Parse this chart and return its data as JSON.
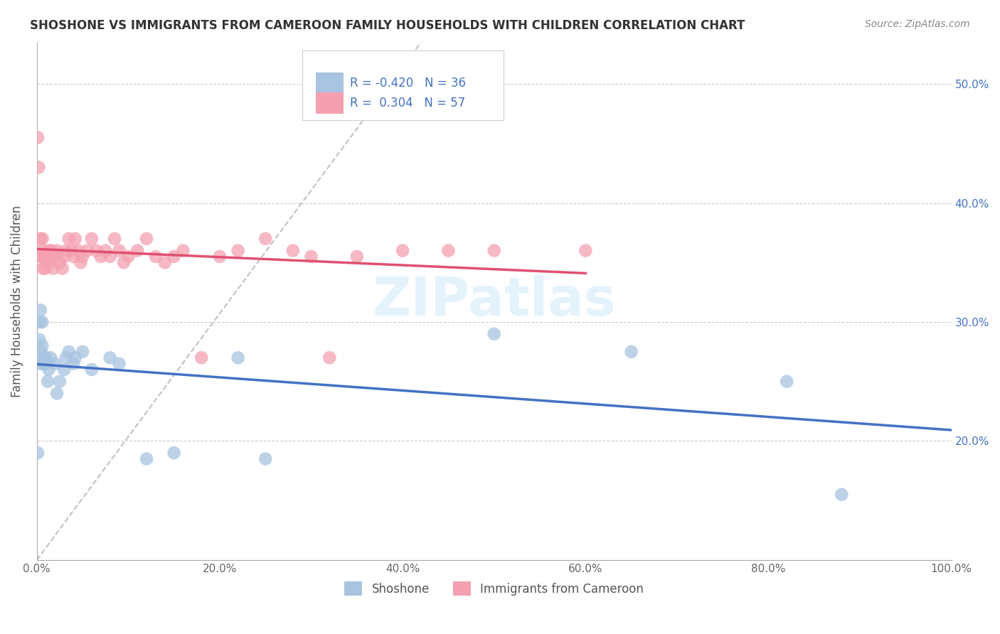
{
  "title": "SHOSHONE VS IMMIGRANTS FROM CAMEROON FAMILY HOUSEHOLDS WITH CHILDREN CORRELATION CHART",
  "source": "Source: ZipAtlas.com",
  "ylabel": "Family Households with Children",
  "legend_labels": [
    "Shoshone",
    "Immigrants from Cameroon"
  ],
  "r_shoshone": -0.42,
  "n_shoshone": 36,
  "r_cameroon": 0.304,
  "n_cameroon": 57,
  "color_shoshone": "#a8c4e0",
  "color_cameroon": "#f4a0b0",
  "trend_color_shoshone": "#4472c4",
  "trend_color_cameroon": "#e05070",
  "shoshone_x": [
    0.001,
    0.002,
    0.003,
    0.003,
    0.004,
    0.005,
    0.005,
    0.006,
    0.006,
    0.007,
    0.008,
    0.009,
    0.01,
    0.012,
    0.013,
    0.015,
    0.02,
    0.022,
    0.025,
    0.03,
    0.032,
    0.035,
    0.04,
    0.042,
    0.05,
    0.06,
    0.08,
    0.09,
    0.12,
    0.15,
    0.22,
    0.25,
    0.5,
    0.65,
    0.82,
    0.88
  ],
  "shoshone_y": [
    0.19,
    0.27,
    0.285,
    0.3,
    0.31,
    0.265,
    0.275,
    0.28,
    0.3,
    0.265,
    0.27,
    0.265,
    0.27,
    0.25,
    0.26,
    0.27,
    0.265,
    0.24,
    0.25,
    0.26,
    0.27,
    0.275,
    0.265,
    0.27,
    0.275,
    0.26,
    0.27,
    0.265,
    0.185,
    0.19,
    0.27,
    0.185,
    0.29,
    0.275,
    0.25,
    0.155
  ],
  "cameroon_x": [
    0.001,
    0.002,
    0.003,
    0.004,
    0.005,
    0.006,
    0.006,
    0.007,
    0.008,
    0.009,
    0.01,
    0.012,
    0.013,
    0.015,
    0.016,
    0.018,
    0.02,
    0.022,
    0.025,
    0.028,
    0.03,
    0.032,
    0.035,
    0.038,
    0.04,
    0.042,
    0.045,
    0.048,
    0.05,
    0.055,
    0.06,
    0.065,
    0.07,
    0.075,
    0.08,
    0.085,
    0.09,
    0.095,
    0.1,
    0.11,
    0.12,
    0.13,
    0.14,
    0.15,
    0.16,
    0.18,
    0.2,
    0.22,
    0.25,
    0.28,
    0.3,
    0.32,
    0.35,
    0.4,
    0.45,
    0.5,
    0.6
  ],
  "cameroon_y": [
    0.455,
    0.43,
    0.355,
    0.37,
    0.355,
    0.36,
    0.37,
    0.345,
    0.355,
    0.345,
    0.35,
    0.355,
    0.36,
    0.35,
    0.36,
    0.345,
    0.355,
    0.36,
    0.35,
    0.345,
    0.355,
    0.36,
    0.37,
    0.36,
    0.355,
    0.37,
    0.36,
    0.35,
    0.355,
    0.36,
    0.37,
    0.36,
    0.355,
    0.36,
    0.355,
    0.37,
    0.36,
    0.35,
    0.355,
    0.36,
    0.37,
    0.355,
    0.35,
    0.355,
    0.36,
    0.27,
    0.355,
    0.36,
    0.37,
    0.36,
    0.355,
    0.27,
    0.355,
    0.36,
    0.36,
    0.36,
    0.36
  ],
  "xlim": [
    0,
    1.0
  ],
  "ylim": [
    0.1,
    0.535
  ],
  "x_ticks": [
    0.0,
    0.2,
    0.4,
    0.6,
    0.8,
    1.0
  ],
  "x_tick_labels": [
    "0.0%",
    "20.0%",
    "40.0%",
    "60.0%",
    "80.0%",
    "100.0%"
  ],
  "y_ticks_right": [
    0.2,
    0.3,
    0.4,
    0.5
  ],
  "y_tick_labels_right": [
    "20.0%",
    "30.0%",
    "40.0%",
    "50.0%"
  ]
}
